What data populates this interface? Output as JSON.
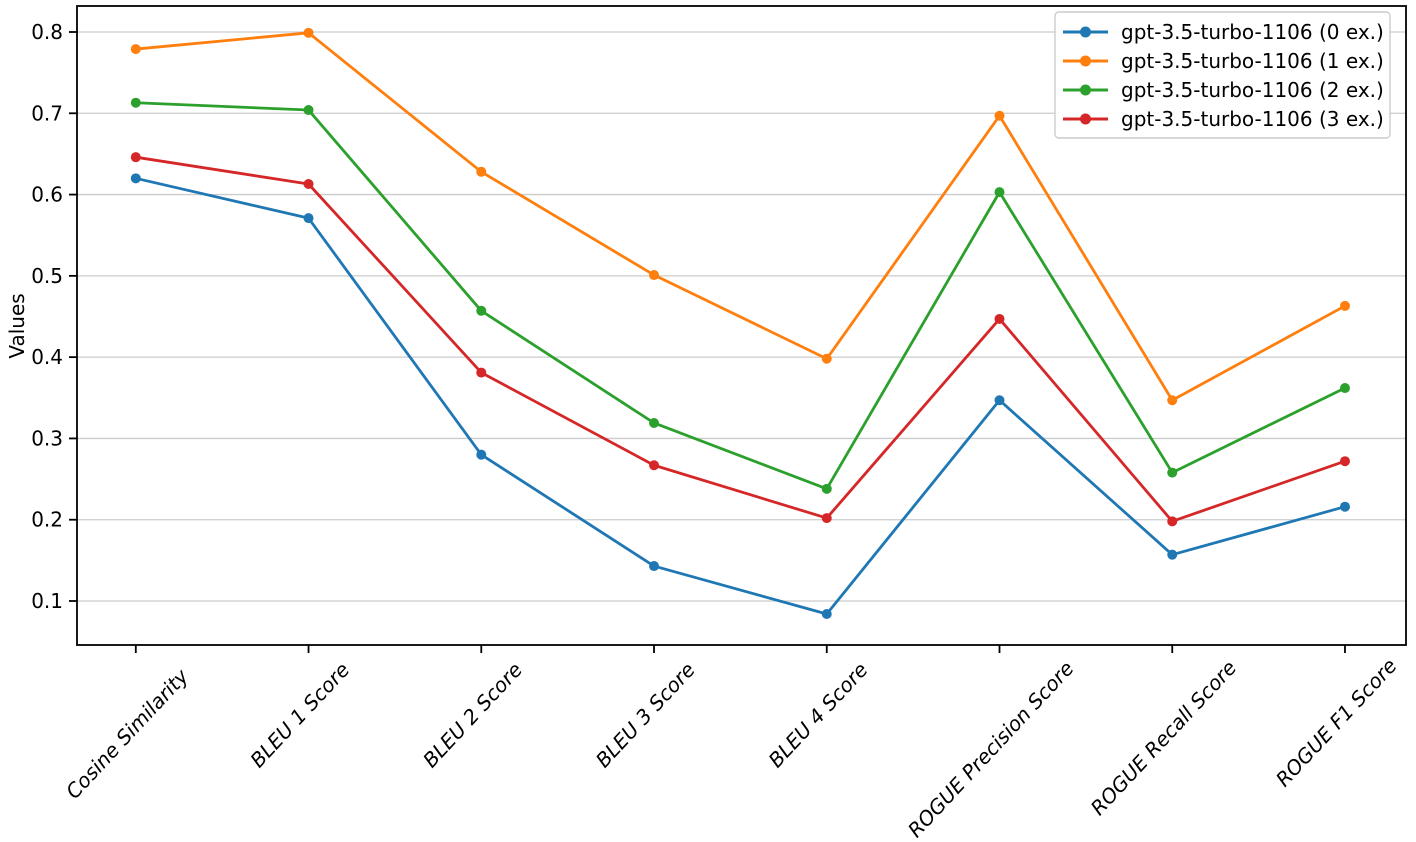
{
  "figure": {
    "background_color": "#ffffff",
    "plot_border_color": "#000000",
    "gridline_color": "#cccccc",
    "legend_border_color": "#cccccc"
  },
  "chart_data": {
    "type": "line",
    "title": "",
    "xlabel": "",
    "ylabel": "Values",
    "categories": [
      "Cosine Similarity",
      "BLEU 1 Score",
      "BLEU 2 Score",
      "BLEU 3 Score",
      "BLEU 4 Score",
      "ROGUE Precision Score",
      "ROGUE Recall Score",
      "ROGUE F1 Score"
    ],
    "series": [
      {
        "name": "gpt-3.5-turbo-1106 (0 ex.)",
        "color": "#1f77b4",
        "values": [
          0.62,
          0.571,
          0.28,
          0.143,
          0.084,
          0.347,
          0.157,
          0.216
        ]
      },
      {
        "name": "gpt-3.5-turbo-1106 (1 ex.)",
        "color": "#ff7f0e",
        "values": [
          0.779,
          0.799,
          0.628,
          0.501,
          0.398,
          0.697,
          0.347,
          0.463
        ]
      },
      {
        "name": "gpt-3.5-turbo-1106 (2 ex.)",
        "color": "#2ca02c",
        "values": [
          0.713,
          0.704,
          0.457,
          0.319,
          0.238,
          0.603,
          0.258,
          0.362
        ]
      },
      {
        "name": "gpt-3.5-turbo-1106 (3 ex.)",
        "color": "#d62728",
        "values": [
          0.646,
          0.613,
          0.381,
          0.267,
          0.202,
          0.447,
          0.198,
          0.272
        ]
      }
    ],
    "yticks": [
      0.1,
      0.2,
      0.3,
      0.4,
      0.5,
      0.6,
      0.7,
      0.8
    ],
    "ylim": [
      0.046,
      0.83
    ],
    "grid": "horizontal",
    "legend_position": "upper right",
    "marker": "circle",
    "xtick_label_rotation_deg": 47,
    "xtick_label_style": "italic"
  }
}
